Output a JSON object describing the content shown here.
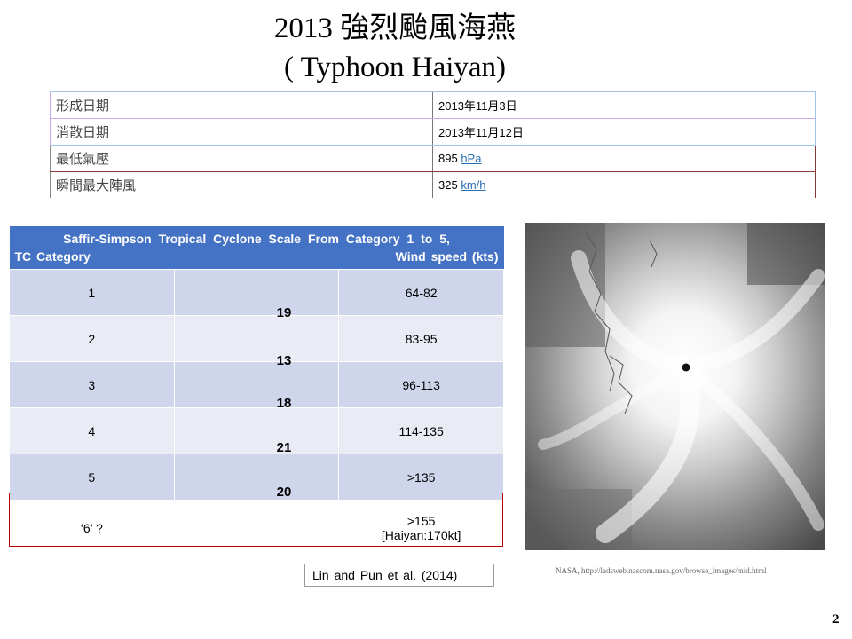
{
  "title": {
    "line1": "2013 強烈颱風海燕",
    "line2": "( Typhoon  Haiyan)"
  },
  "info_table": {
    "rows": [
      {
        "label": "形成日期",
        "value": "2013年11月3日"
      },
      {
        "label": "消散日期",
        "value": "2013年11月12日"
      },
      {
        "label": "最低氣壓",
        "value_num": "895",
        "value_unit": "hPa"
      },
      {
        "label": "瞬間最大陣風",
        "value_num": "325",
        "value_unit": "km/h"
      }
    ]
  },
  "scale_table": {
    "header_line1": "Saffir-Simpson Tropical Cyclone Scale From Category 1 to 5,",
    "header_col1": "TC Category",
    "header_col3": "Wind speed (kts)",
    "rows": [
      {
        "category": "1",
        "wind": "64-82"
      },
      {
        "category": "2",
        "wind": "83-95"
      },
      {
        "category": "3",
        "wind": "96-113"
      },
      {
        "category": "4",
        "wind": "114-135"
      },
      {
        "category": "5",
        "wind": ">135"
      },
      {
        "category": "‘6’ ?",
        "wind_line1": ">155",
        "wind_line2": "[Haiyan:170kt]"
      }
    ],
    "counts": [
      "19",
      "13",
      "18",
      "21",
      "20"
    ]
  },
  "citation": "Lin and Pun et al. (2014)",
  "image_credit": "NASA, http://ladsweb.nascom.nasa.gov/browse_images/mid.html",
  "page_number": "2"
}
